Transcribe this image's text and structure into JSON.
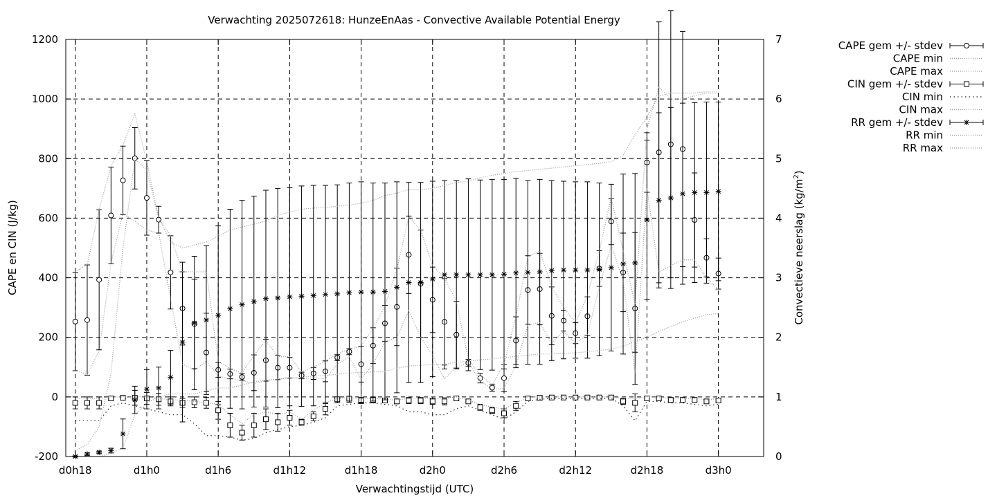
{
  "chart_data": {
    "type": "line",
    "title": "Verwachting 2025072618: HunzeEnAas - Convective Available Potential Energy",
    "xlabel": "Verwachtingstijd (UTC)",
    "ylabel": "CAPE en CIN (J/kg)",
    "y2label": "Convectieve neerslag (kg/m",
    "y2label_sup": "2",
    "y2label_end": ")",
    "x_unit": "hours since d0h18",
    "xlim": [
      -0.8,
      57.8
    ],
    "ylim": [
      -200,
      1200
    ],
    "y2lim": [
      0,
      7
    ],
    "grid": true,
    "legend_position": "outside-right",
    "x_ticks": [
      {
        "x": 0,
        "label": "d0h18"
      },
      {
        "x": 6,
        "label": "d1h0"
      },
      {
        "x": 12,
        "label": "d1h6"
      },
      {
        "x": 18,
        "label": "d1h12"
      },
      {
        "x": 24,
        "label": "d1h18"
      },
      {
        "x": 30,
        "label": "d2h0"
      },
      {
        "x": 36,
        "label": "d2h6"
      },
      {
        "x": 42,
        "label": "d2h12"
      },
      {
        "x": 48,
        "label": "d2h18"
      },
      {
        "x": 54,
        "label": "d3h0"
      }
    ],
    "y_ticks": [
      -200,
      0,
      200,
      400,
      600,
      800,
      1000,
      1200
    ],
    "y2_ticks": [
      0,
      1,
      2,
      3,
      4,
      5,
      6,
      7
    ],
    "x": [
      0,
      1,
      2,
      3,
      4,
      5,
      6,
      7,
      8,
      9,
      10,
      11,
      12,
      13,
      14,
      15,
      16,
      17,
      18,
      19,
      20,
      21,
      22,
      23,
      24,
      25,
      26,
      27,
      28,
      29,
      30,
      31,
      32,
      33,
      34,
      35,
      36,
      37,
      38,
      39,
      40,
      41,
      42,
      43,
      44,
      45,
      46,
      47,
      48,
      49,
      50,
      51,
      52,
      53,
      54
    ],
    "legend": [
      {
        "label": "CAPE gem +/- stdev",
        "style": "errorbar",
        "marker": "circle"
      },
      {
        "label": "CAPE min",
        "style": "dotted"
      },
      {
        "label": "CAPE max",
        "style": "dotted"
      },
      {
        "label": "CIN gem +/- stdev",
        "style": "errorbar",
        "marker": "square"
      },
      {
        "label": "CIN min",
        "style": "dotted-coarse"
      },
      {
        "label": "CIN max",
        "style": "dotted"
      },
      {
        "label": "RR gem +/- stdev",
        "style": "errorbar",
        "marker": "star"
      },
      {
        "label": "RR min",
        "style": "dotted"
      },
      {
        "label": "RR max",
        "style": "dotted"
      }
    ],
    "series": [
      {
        "name": "CAPE gem +/- stdev",
        "axis": "y",
        "marker": "circle",
        "values": [
          253,
          258,
          393,
          609,
          727,
          801,
          668,
          595,
          418,
          297,
          245,
          149,
          91,
          77,
          67,
          81,
          123,
          98,
          98,
          72,
          79,
          86,
          132,
          152,
          110,
          172,
          247,
          302,
          477,
          380,
          326,
          252,
          209,
          114,
          63,
          31,
          63,
          189,
          359,
          362,
          272,
          256,
          214,
          271,
          431,
          589,
          418,
          297,
          787,
          821,
          848,
          832,
          594,
          467,
          414
        ],
        "err": [
          165,
          185,
          235,
          162,
          115,
          103,
          125,
          45,
          123,
          123,
          150,
          132,
          25,
          16,
          11,
          60,
          70,
          40,
          35,
          11,
          20,
          35,
          10,
          10,
          60,
          60,
          60,
          130,
          130,
          180,
          110,
          145,
          112,
          12,
          16,
          12,
          45,
          80,
          115,
          120,
          97,
          35,
          35,
          65,
          60,
          78,
          132,
          255,
          100,
          438,
          448,
          395,
          158,
          64,
          52
        ]
      },
      {
        "name": "CIN gem +/- stdev",
        "axis": "y",
        "marker": "square",
        "values": [
          -20,
          -20,
          -20,
          -5,
          -3,
          -3,
          -5,
          -8,
          -15,
          -20,
          -18,
          -20,
          -45,
          -95,
          -120,
          -95,
          -75,
          -85,
          -70,
          -85,
          -65,
          -40,
          -8,
          -6,
          -12,
          -10,
          -12,
          -15,
          -12,
          -12,
          -15,
          -15,
          -5,
          -15,
          -35,
          -45,
          -55,
          -30,
          -5,
          -3,
          -2,
          -2,
          -2,
          -2,
          -2,
          -2,
          -15,
          -20,
          -5,
          -5,
          -10,
          -10,
          -10,
          -15,
          -12
        ],
        "err": [
          20,
          20,
          20,
          3,
          3,
          25,
          20,
          20,
          15,
          15,
          18,
          18,
          30,
          40,
          25,
          40,
          35,
          30,
          25,
          10,
          15,
          20,
          5,
          5,
          10,
          10,
          5,
          8,
          10,
          10,
          10,
          12,
          5,
          5,
          10,
          10,
          15,
          15,
          3,
          3,
          2,
          2,
          2,
          2,
          2,
          2,
          10,
          30,
          5,
          5,
          5,
          5,
          5,
          5,
          5
        ]
      },
      {
        "name": "RR gem +/- stdev",
        "axis": "y2",
        "marker": "star",
        "values": [
          0.0,
          0.04,
          0.07,
          0.1,
          0.38,
          0.95,
          1.13,
          1.15,
          1.33,
          1.92,
          2.24,
          2.29,
          2.37,
          2.48,
          2.55,
          2.6,
          2.65,
          2.66,
          2.68,
          2.69,
          2.7,
          2.72,
          2.73,
          2.75,
          2.76,
          2.76,
          2.77,
          2.84,
          2.92,
          2.92,
          2.98,
          3.05,
          3.05,
          3.05,
          3.05,
          3.05,
          3.06,
          3.08,
          3.09,
          3.1,
          3.12,
          3.13,
          3.13,
          3.13,
          3.14,
          3.17,
          3.23,
          3.25,
          3.97,
          4.3,
          4.34,
          4.41,
          4.43,
          4.43,
          4.45
        ],
        "err": [
          0.01,
          0.02,
          0.02,
          0.04,
          0.25,
          0.23,
          0.33,
          0.35,
          0.45,
          1.34,
          1.12,
          1.25,
          1.5,
          1.67,
          1.75,
          1.77,
          1.82,
          1.84,
          1.83,
          1.85,
          1.85,
          1.83,
          1.83,
          1.84,
          1.85,
          1.83,
          1.82,
          1.77,
          1.68,
          1.68,
          1.64,
          1.58,
          1.58,
          1.61,
          1.59,
          1.6,
          1.59,
          1.59,
          1.54,
          1.55,
          1.51,
          1.49,
          1.48,
          1.48,
          1.45,
          1.4,
          1.51,
          1.5,
          1.34,
          1.47,
          1.52,
          1.52,
          1.51,
          1.52,
          1.5
        ]
      },
      {
        "name": "CAPE min",
        "axis": "y",
        "style": "dotted",
        "values": [
          90,
          75,
          155,
          450,
          615,
          590,
          560,
          550,
          330,
          110,
          90,
          120,
          70,
          60,
          55,
          45,
          55,
          60,
          65,
          60,
          65,
          60,
          110,
          135,
          60,
          110,
          185,
          200,
          290,
          200,
          140,
          60,
          100,
          115,
          55,
          25,
          30,
          105,
          240,
          250,
          180,
          220,
          180,
          210,
          370,
          510,
          390,
          80,
          700,
          420,
          440,
          460,
          460,
          400,
          360
        ]
      },
      {
        "name": "CAPE max",
        "axis": "y",
        "style": "dotted",
        "values": [
          420,
          445,
          630,
          775,
          845,
          950,
          790,
          600,
          540,
          420,
          420,
          420,
          120,
          95,
          80,
          140,
          190,
          135,
          135,
          85,
          100,
          120,
          145,
          160,
          170,
          230,
          305,
          430,
          605,
          560,
          440,
          400,
          320,
          125,
          75,
          40,
          110,
          270,
          470,
          490,
          370,
          300,
          250,
          340,
          490,
          670,
          490,
          310,
          900,
          1040,
          1000,
          1000,
          1010,
          1020,
          1020
        ]
      },
      {
        "name": "CIN min",
        "axis": "y",
        "style": "dotted-coarse",
        "values": [
          -80,
          -80,
          -80,
          -30,
          -20,
          -30,
          -40,
          -50,
          -60,
          -60,
          -90,
          -130,
          -130,
          -135,
          -145,
          -140,
          -120,
          -110,
          -100,
          -95,
          -85,
          -70,
          -30,
          -25,
          -20,
          -20,
          -25,
          -30,
          -50,
          -50,
          -60,
          -60,
          -40,
          -30,
          -45,
          -60,
          -75,
          -50,
          -15,
          -8,
          -5,
          -5,
          -5,
          -5,
          -5,
          -5,
          -30,
          -80,
          -15,
          -15,
          -20,
          -20,
          -25,
          -30,
          -25
        ]
      },
      {
        "name": "CIN max",
        "axis": "y",
        "style": "dotted",
        "values": [
          -5,
          -5,
          -5,
          0,
          0,
          0,
          0,
          -5,
          -10,
          -10,
          -15,
          -20,
          -25,
          -60,
          -90,
          -60,
          -50,
          -60,
          -50,
          -75,
          -45,
          -20,
          -5,
          -3,
          -5,
          -5,
          -8,
          -10,
          -5,
          -5,
          -5,
          -5,
          0,
          -10,
          -25,
          -35,
          -40,
          -20,
          0,
          0,
          0,
          0,
          0,
          0,
          0,
          0,
          -5,
          -5,
          0,
          0,
          -5,
          -5,
          -5,
          -10,
          -5
        ]
      },
      {
        "name": "RR min",
        "axis": "y2",
        "style": "dotted",
        "values": [
          0,
          0,
          0,
          0.05,
          0.15,
          0.7,
          0.9,
          1.0,
          1.05,
          1.05,
          1.05,
          1.1,
          1.15,
          1.15,
          1.2,
          1.25,
          1.28,
          1.3,
          1.32,
          1.33,
          1.35,
          1.36,
          1.38,
          1.4,
          1.41,
          1.42,
          1.43,
          1.48,
          1.52,
          1.53,
          1.55,
          1.55,
          1.58,
          1.6,
          1.62,
          1.64,
          1.66,
          1.68,
          1.7,
          1.72,
          1.72,
          1.73,
          1.74,
          1.76,
          1.78,
          1.8,
          1.85,
          1.93,
          2.0,
          2.1,
          2.18,
          2.26,
          2.32,
          2.38,
          2.4
        ]
      },
      {
        "name": "RR max",
        "axis": "y2",
        "style": "dotted",
        "values": [
          0.1,
          0.2,
          0.5,
          1.4,
          3.5,
          5.0,
          4.8,
          4.0,
          3.6,
          3.5,
          3.55,
          3.6,
          3.7,
          3.8,
          3.85,
          3.9,
          3.95,
          4.05,
          4.1,
          4.15,
          4.17,
          4.18,
          4.2,
          4.22,
          4.25,
          4.3,
          4.38,
          4.42,
          4.48,
          4.48,
          4.5,
          4.55,
          4.6,
          4.62,
          4.68,
          4.72,
          4.75,
          4.78,
          4.8,
          4.82,
          4.84,
          4.86,
          4.88,
          4.9,
          4.92,
          4.95,
          5.05,
          5.4,
          5.7,
          6.05,
          6.1,
          6.1,
          6.1,
          6.12,
          6.12
        ]
      }
    ]
  }
}
